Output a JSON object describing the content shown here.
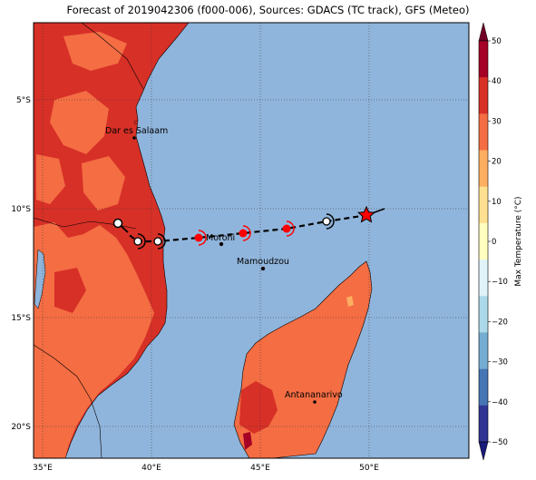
{
  "title": "Forecast of 2019042306 (f000-006), Sources: GDACS (TC track), GFS (Meteo)",
  "colorbar": {
    "label": "Max Temperature (°C)",
    "ticks": [
      "50",
      "40",
      "30",
      "20",
      "10",
      "0",
      "−10",
      "−20",
      "−30",
      "−40",
      "−50"
    ],
    "colors": [
      "#730026",
      "#a50026",
      "#d73027",
      "#f46d43",
      "#fdae61",
      "#fee090",
      "#ffffbf",
      "#e0f3f8",
      "#abd9e9",
      "#74add1",
      "#4575b4",
      "#313695",
      "#1a1a7a"
    ]
  },
  "axes": {
    "lon_labels": [
      "35°E",
      "40°E",
      "45°E",
      "50°E"
    ],
    "lat_labels": [
      "5°S",
      "10°S",
      "15°S",
      "20°S"
    ]
  },
  "places": [
    {
      "name": "Dar es Salaam"
    },
    {
      "name": "Moroni"
    },
    {
      "name": "Mamoudzou"
    },
    {
      "name": "Antananarivo"
    }
  ],
  "colors": {
    "ocean": "#90b5dc",
    "land_hot": "#d73027",
    "land_warm": "#f46d43",
    "land_mild": "#fdae61",
    "track": "#000000",
    "cyclone_symbol": "#ff0000"
  }
}
